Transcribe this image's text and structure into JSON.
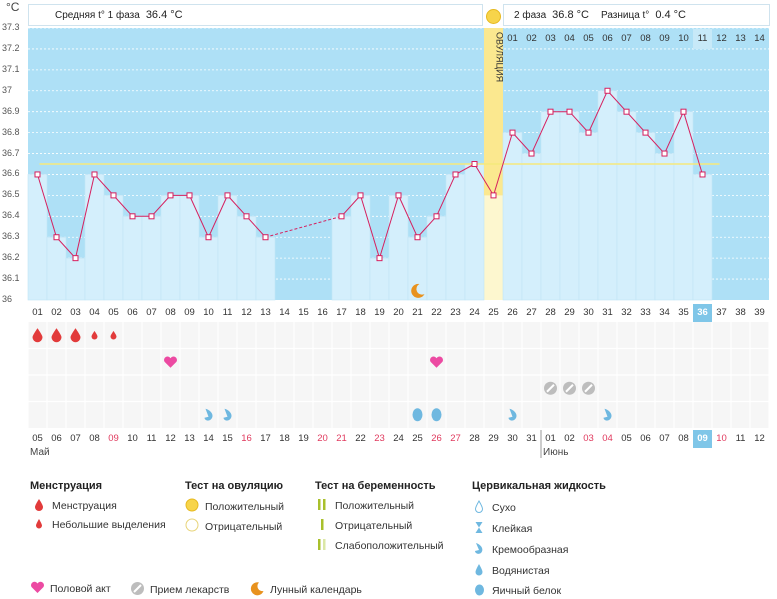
{
  "axis_unit": "°C",
  "phase1": {
    "label": "Средняя t° 1 фаза",
    "value": "36.4 °C"
  },
  "phase2": {
    "label": "2 фаза",
    "value": "36.8 °C",
    "diff_label": "Разница t°",
    "diff_value": "0.4 °C"
  },
  "ovulation_label": "ОВУЛЯЦИЯ",
  "colors": {
    "bar": "#d4effc",
    "plot_bg": "#aee0f6",
    "line": "#d61f5e",
    "coverline": "#f5e97c",
    "ovulation": "#fbe88f",
    "grid_bg": "#f6f6f6"
  },
  "chart_data": {
    "type": "bar",
    "title": "",
    "ylabel": "°C",
    "ylim": [
      36.0,
      37.3
    ],
    "yticks": [
      "37.3",
      "37.2",
      "37.1",
      "37",
      "36.9",
      "36.8",
      "36.7",
      "36.6",
      "36.5",
      "36.4",
      "36.3",
      "36.2",
      "36.1",
      "36"
    ],
    "cycle_days": [
      "01",
      "02",
      "03",
      "04",
      "05",
      "06",
      "07",
      "08",
      "09",
      "10",
      "11",
      "12",
      "13",
      "14",
      "15",
      "16",
      "17",
      "18",
      "19",
      "20",
      "21",
      "22",
      "23",
      "24",
      "25",
      "26",
      "27",
      "28",
      "29",
      "30",
      "31",
      "32",
      "33",
      "34",
      "35",
      "36",
      "37",
      "38",
      "39"
    ],
    "temperatures": [
      36.6,
      36.3,
      36.2,
      36.6,
      36.5,
      36.4,
      36.4,
      36.5,
      36.5,
      36.3,
      36.5,
      36.4,
      36.3,
      null,
      null,
      null,
      36.4,
      36.5,
      36.2,
      36.5,
      36.3,
      36.4,
      36.6,
      36.65,
      36.5,
      36.8,
      36.7,
      36.9,
      36.9,
      36.8,
      37.0,
      36.9,
      36.8,
      36.7,
      36.9,
      36.6,
      null,
      null,
      null
    ],
    "coverline": 36.65,
    "ovulation_day": 25,
    "current_day": 36,
    "phase2_days": [
      "01",
      "02",
      "03",
      "04",
      "05",
      "06",
      "07",
      "08",
      "09",
      "10",
      "11",
      "12",
      "13",
      "14"
    ],
    "phase2_highlight_index": 10,
    "dates": [
      "05",
      "06",
      "07",
      "08",
      "09",
      "10",
      "11",
      "12",
      "13",
      "14",
      "15",
      "16",
      "17",
      "18",
      "19",
      "20",
      "21",
      "22",
      "23",
      "24",
      "25",
      "26",
      "27",
      "28",
      "29",
      "30",
      "31",
      "01",
      "02",
      "03",
      "04",
      "05",
      "06",
      "07",
      "08",
      "09",
      "10",
      "11",
      "12"
    ],
    "red_dates": [
      4,
      11,
      15,
      16,
      18,
      21,
      22,
      29,
      30,
      35,
      36
    ],
    "today_date_index": 35,
    "months": [
      {
        "label": "Май",
        "start_index": 0
      },
      {
        "label": "Июнь",
        "start_index": 27
      }
    ],
    "menstruation": [
      {
        "day": 1,
        "size": "big"
      },
      {
        "day": 2,
        "size": "big"
      },
      {
        "day": 3,
        "size": "big"
      },
      {
        "day": 4,
        "size": "small"
      },
      {
        "day": 5,
        "size": "small"
      }
    ],
    "intercourse_days": [
      8,
      22
    ],
    "medication_days": [
      28,
      29,
      30
    ],
    "moon_days": [
      21
    ],
    "cervical": [
      {
        "day": 10,
        "type": "creamy"
      },
      {
        "day": 11,
        "type": "creamy"
      },
      {
        "day": 21,
        "type": "egg_white"
      },
      {
        "day": 22,
        "type": "egg_white"
      },
      {
        "day": 26,
        "type": "creamy"
      },
      {
        "day": 31,
        "type": "creamy"
      }
    ]
  },
  "legend": {
    "menstruation": {
      "title": "Менструация",
      "items": [
        "Менструация",
        "Небольшие выделения"
      ]
    },
    "ovulation_test": {
      "title": "Тест на овуляцию",
      "items": [
        "Положительный",
        "Отрицательный"
      ]
    },
    "pregnancy_test": {
      "title": "Тест на беременность",
      "items": [
        "Положительный",
        "Отрицательный",
        "Слабоположительный"
      ]
    },
    "cervical": {
      "title": "Цервикальная жидкость",
      "items": [
        "Сухо",
        "Клейкая",
        "Кремообразная",
        "Водянистая",
        "Яичный белок"
      ]
    },
    "bottom": [
      "Половой акт",
      "Прием лекарств",
      "Лунный календарь"
    ]
  }
}
